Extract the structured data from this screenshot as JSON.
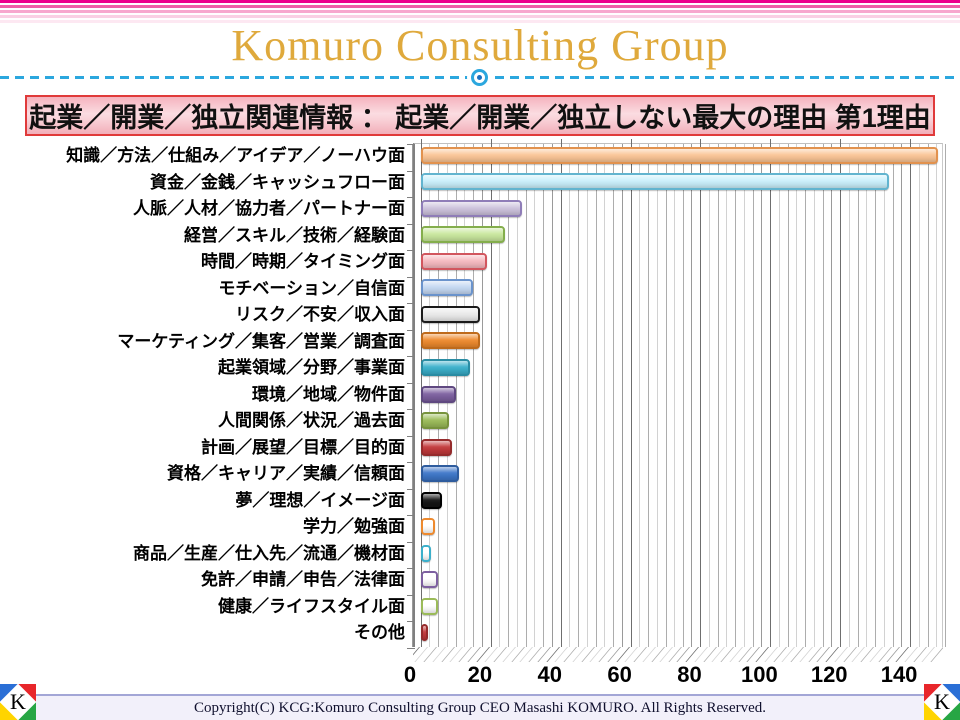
{
  "header": {
    "title": "Komuro Consulting Group",
    "title_color": "#DFA93C",
    "banner": "起業／開業／独立関連情報 ： 起業／開業／独立しない最大の理由 第1理由"
  },
  "decor": {
    "stripe_colors": [
      "#EC008C",
      "#EF5FA7",
      "#F7A8CE",
      "#FAD0E4",
      "#FDE8F2"
    ],
    "dash_color": "#2BA7DE"
  },
  "chart_data": {
    "type": "bar",
    "orientation": "horizontal",
    "title": "",
    "xlabel": "",
    "ylabel": "",
    "xlim": [
      0,
      150
    ],
    "x_ticks": [
      0,
      20,
      40,
      60,
      80,
      100,
      120,
      140
    ],
    "minor_unit": 5,
    "major_unit": 20,
    "grid": true,
    "legend": "none",
    "categories": [
      "知識／方法／仕組み／アイデア／ノーハウ面",
      "資金／金銭／キャッシュフロー面",
      "人脈／人材／協力者／パートナー面",
      "経営／スキル／技術／経験面",
      "時間／時期／タイミング面",
      "モチベーション／自信面",
      "リスク／不安／収入面",
      "マーケティング／集客／営業／調査面",
      "起業領域／分野／事業面",
      "環境／地域／物件面",
      "人間関係／状況／過去面",
      "計画／展望／目標／目的面",
      "資格／キャリア／実績／信頼面",
      "夢／理想／イメージ面",
      "学力／勉強面",
      "商品／生産／仕入先／流通／機材面",
      "免許／申請／申告／法律面",
      "健康／ライフスタイル面",
      "その他"
    ],
    "values": [
      148,
      134,
      29,
      24,
      19,
      15,
      17,
      17,
      14,
      10,
      8,
      9,
      11,
      6,
      4,
      3,
      5,
      5,
      2
    ],
    "bar_styles": [
      {
        "fill": "#FAC596",
        "border": "#E2924E"
      },
      {
        "fill": "#C9EFFB",
        "border": "#62B4CF"
      },
      {
        "fill": "#CCC2DC",
        "border": "#8F7DB8"
      },
      {
        "fill": "#C9E79E",
        "border": "#84AE4C"
      },
      {
        "fill": "#F5B9BF",
        "border": "#D2565E"
      },
      {
        "fill": "#C4D8F2",
        "border": "#6A93CC"
      },
      {
        "fill": "#E9E9E9",
        "border": "#1A1A1A"
      },
      {
        "fill": "#EE8A2E",
        "border": "#BF6A1A"
      },
      {
        "fill": "#3BB0CB",
        "border": "#2A8CA3"
      },
      {
        "fill": "#7D60A0",
        "border": "#5F4880"
      },
      {
        "fill": "#9BBB59",
        "border": "#77933C"
      },
      {
        "fill": "#C2393B",
        "border": "#952B2C"
      },
      {
        "fill": "#3E77C9",
        "border": "#2E5C9E"
      },
      {
        "fill": "#151515",
        "border": "#000000"
      },
      {
        "fill": "#FFFFFF",
        "border": "#EE8A2E"
      },
      {
        "fill": "#FFFFFF",
        "border": "#3BB0CB"
      },
      {
        "fill": "#FFFFFF",
        "border": "#7D60A0"
      },
      {
        "fill": "#FFFFFF",
        "border": "#9BBB59"
      },
      {
        "fill": "#C2393B",
        "border": "#952B2C"
      }
    ]
  },
  "footer": {
    "copyright": "Copyright(C)  KCG:Komuro Consulting Group  CEO Masashi KOMURO. All Rights Reserved.",
    "logo_letter": "K"
  }
}
